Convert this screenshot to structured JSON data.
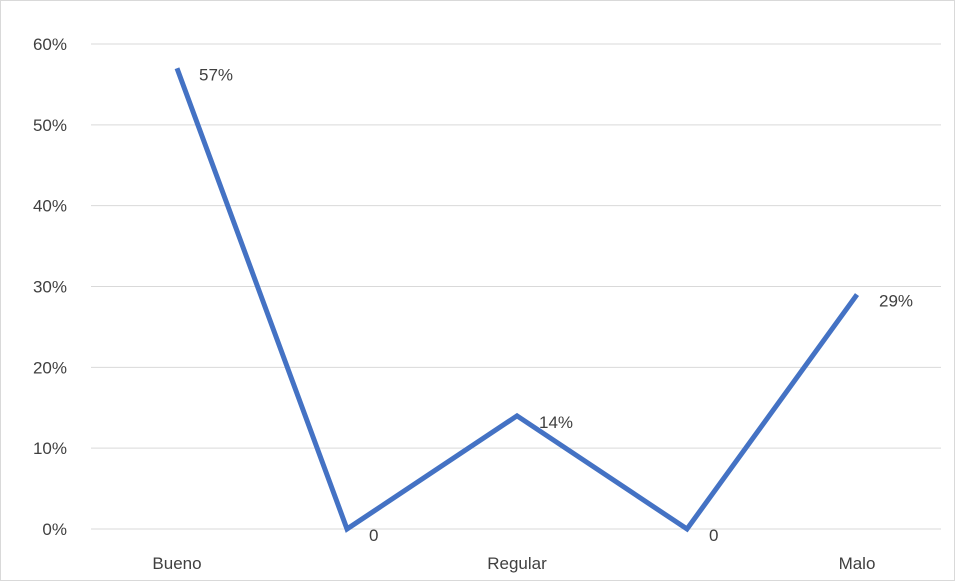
{
  "chart_data": {
    "type": "line",
    "categories": [
      "Bueno",
      "",
      "Regular",
      "",
      "Malo"
    ],
    "values": [
      0.57,
      0,
      0.14,
      0,
      0.29
    ],
    "data_labels": [
      "57%",
      "0",
      "14%",
      "0",
      "29%"
    ],
    "y_ticks": [
      "0%",
      "10%",
      "20%",
      "30%",
      "40%",
      "50%",
      "60%"
    ],
    "ylim": [
      0,
      0.6
    ],
    "grid": true,
    "line_color": "#4472C4",
    "grid_color": "#d9d9d9"
  }
}
